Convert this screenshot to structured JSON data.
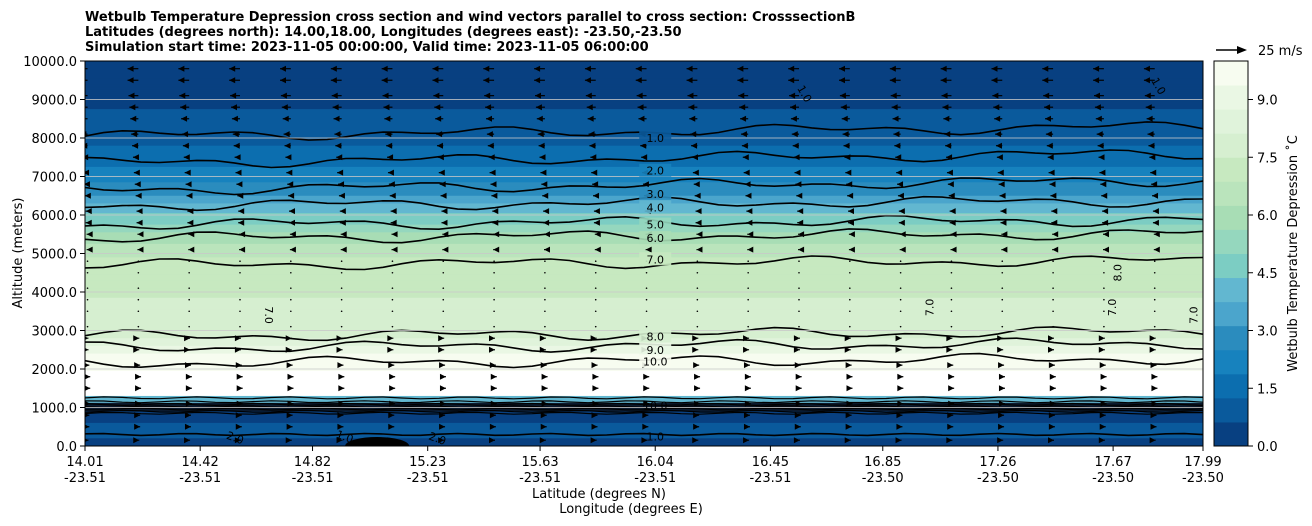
{
  "title": {
    "line1": "Wetbulb Temperature Depression cross section and wind vectors parallel to cross section: CrosssectionB",
    "line2": "Latitudes (degrees north): 14.00,18.00, Longitudes (degrees east): -23.50,-23.50",
    "line3": "Simulation start time: 2023-11-05 00:00:00, Valid time: 2023-11-05 06:00:00"
  },
  "chart_data": {
    "type": "contour",
    "title": "Wetbulb Temperature Depression cross section and wind vectors parallel to cross section: CrosssectionB",
    "ylabel": "Altitude (meters)",
    "xlabel_lat": "Latitude (degrees N)",
    "xlabel_lon": "Longitude (degrees E)",
    "ylim": [
      0,
      10000
    ],
    "xlim": [
      14.01,
      17.99
    ],
    "grid": "horizontal",
    "y_ticks": [
      0,
      1000,
      2000,
      3000,
      4000,
      5000,
      6000,
      7000,
      8000,
      9000,
      10000
    ],
    "y_tick_labels": [
      "0.0",
      "1000.0",
      "2000.0",
      "3000.0",
      "4000.0",
      "5000.0",
      "6000.0",
      "7000.0",
      "8000.0",
      "9000.0",
      "10000.0"
    ],
    "x_ticks": [
      {
        "lat": "14.01",
        "lon": "-23.51"
      },
      {
        "lat": "14.42",
        "lon": "-23.51"
      },
      {
        "lat": "14.82",
        "lon": "-23.51"
      },
      {
        "lat": "15.23",
        "lon": "-23.51"
      },
      {
        "lat": "15.63",
        "lon": "-23.51"
      },
      {
        "lat": "16.04",
        "lon": "-23.51"
      },
      {
        "lat": "16.45",
        "lon": "-23.51"
      },
      {
        "lat": "16.85",
        "lon": "-23.50"
      },
      {
        "lat": "17.26",
        "lon": "-23.50"
      },
      {
        "lat": "17.67",
        "lon": "-23.50"
      },
      {
        "lat": "17.99",
        "lon": "-23.50"
      }
    ],
    "colorbar": {
      "label": "Wetbulb Temperature Depression ˚C",
      "range": [
        0,
        10
      ],
      "tick_values": [
        0,
        1.5,
        3,
        4.5,
        6,
        7.5,
        9
      ],
      "tick_labels": [
        "0.0",
        "1.5",
        "3.0",
        "4.5",
        "6.0",
        "7.5",
        "9.0"
      ],
      "colors": [
        "#084081",
        "#0a5a9c",
        "#0c6eaf",
        "#1782be",
        "#2b8cbe",
        "#4ba5cc",
        "#62b7d0",
        "#7ccdc3",
        "#95d7be",
        "#a8ddb5",
        "#bae4bc",
        "#c7e9c0",
        "#d6efd0",
        "#e0f3db",
        "#eaf7e4",
        "#f7fcf0"
      ]
    },
    "quiver_key": {
      "label": "25 m/s",
      "value": 25
    },
    "contour_levels": [
      {
        "value": 1.0,
        "label": "1.0",
        "altitude": 8000
      },
      {
        "value": 2.0,
        "label": "2.0",
        "altitude": 7150
      },
      {
        "value": 3.0,
        "label": "3.0",
        "altitude": 6550
      },
      {
        "value": 4.0,
        "label": "4.0",
        "altitude": 6200
      },
      {
        "value": 5.0,
        "label": "5.0",
        "altitude": 5750
      },
      {
        "value": 6.0,
        "label": "6.0",
        "altitude": 5400
      },
      {
        "value": 7.0,
        "label": "7.0",
        "altitude": 4850
      },
      {
        "value": 8.0,
        "label": "8.0",
        "altitude": 2850
      },
      {
        "value": 9.0,
        "label": "9.0",
        "altitude": 2500
      },
      {
        "value": 10.0,
        "label": "10.0",
        "altitude": 2200
      }
    ],
    "contour_lines_altitudes": [
      8050,
      7350,
      6650,
      6250,
      5750,
      5400,
      4700,
      2850,
      2550,
      2150
    ],
    "lower_labels": [
      {
        "label": "1.0",
        "altitude": 250
      },
      {
        "label": "10.0",
        "altitude": 1050
      }
    ],
    "rotated_labels": [
      {
        "label": "1.0",
        "lat": 16.56,
        "altitude": 9100,
        "rotation": 60
      },
      {
        "label": "1.0",
        "lat": 17.82,
        "altitude": 9300,
        "rotation": 60
      },
      {
        "label": "7.0",
        "lat": 14.65,
        "altitude": 3400,
        "rotation": 90
      },
      {
        "label": "7.0",
        "lat": 17.03,
        "altitude": 3600,
        "rotation": -90
      },
      {
        "label": "7.0",
        "lat": 17.68,
        "altitude": 3600,
        "rotation": -90
      },
      {
        "label": "8.0",
        "lat": 17.7,
        "altitude": 4500,
        "rotation": -90
      },
      {
        "label": "7.0",
        "lat": 17.97,
        "altitude": 3400,
        "rotation": -90
      },
      {
        "label": "2.0",
        "lat": 14.54,
        "altitude": 120,
        "rotation": 20
      },
      {
        "label": "1.0",
        "lat": 14.93,
        "altitude": 150,
        "rotation": 20
      },
      {
        "label": "2.0",
        "lat": 15.26,
        "altitude": 100,
        "rotation": 20
      }
    ],
    "wind_levels": [
      {
        "altitude": 9800,
        "u": -12
      },
      {
        "altitude": 9500,
        "u": -12
      },
      {
        "altitude": 9100,
        "u": -11
      },
      {
        "altitude": 8800,
        "u": -10
      },
      {
        "altitude": 8500,
        "u": -9
      },
      {
        "altitude": 8100,
        "u": -8
      },
      {
        "altitude": 7800,
        "u": -7
      },
      {
        "altitude": 7500,
        "u": -6
      },
      {
        "altitude": 7100,
        "u": -5
      },
      {
        "altitude": 6800,
        "u": -4
      },
      {
        "altitude": 6500,
        "u": -3
      },
      {
        "altitude": 6100,
        "u": -2
      },
      {
        "altitude": 5800,
        "u": -2
      },
      {
        "altitude": 5500,
        "u": -1
      },
      {
        "altitude": 5100,
        "u": -1
      },
      {
        "altitude": 4800,
        "u": 0
      },
      {
        "altitude": 4500,
        "u": 0
      },
      {
        "altitude": 4100,
        "u": 0
      },
      {
        "altitude": 3800,
        "u": 0
      },
      {
        "altitude": 3500,
        "u": 0
      },
      {
        "altitude": 3100,
        "u": 0
      },
      {
        "altitude": 2800,
        "u": 1
      },
      {
        "altitude": 2500,
        "u": 1
      },
      {
        "altitude": 2100,
        "u": 2
      },
      {
        "altitude": 1800,
        "u": 3
      },
      {
        "altitude": 1500,
        "u": 3
      },
      {
        "altitude": 1100,
        "u": 3
      },
      {
        "altitude": 800,
        "u": 2
      },
      {
        "altitude": 500,
        "u": 2
      },
      {
        "altitude": 150,
        "u": 1
      }
    ]
  }
}
